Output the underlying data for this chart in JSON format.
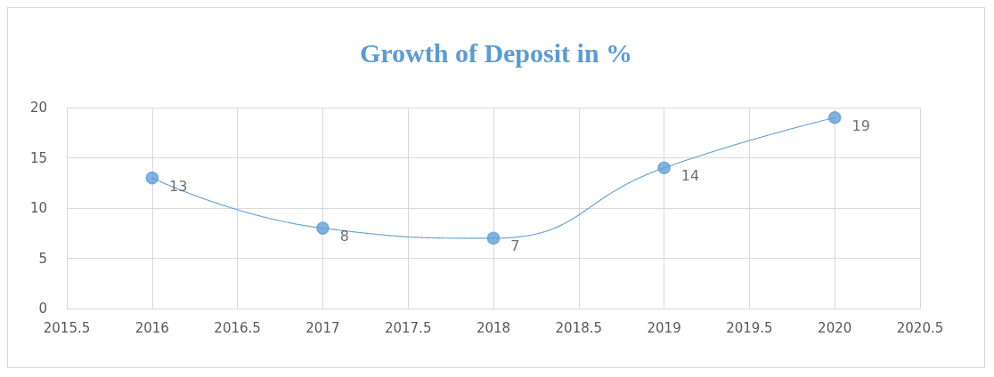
{
  "chart_data": {
    "type": "line",
    "title": "Growth of Deposit in %",
    "x": [
      2016,
      2017,
      2018,
      2019,
      2020
    ],
    "series": [
      {
        "color": "#5b9bd5",
        "values": [
          13,
          8,
          7,
          14,
          19
        ]
      }
    ],
    "xlim": [
      2015.5,
      2020.5
    ],
    "xticks": [
      2015.5,
      2016,
      2016.5,
      2017,
      2017.5,
      2018,
      2018.5,
      2019,
      2019.5,
      2020,
      2020.5
    ],
    "ylim": [
      0,
      20
    ],
    "yticks": [
      0,
      5,
      10,
      15,
      20
    ],
    "grid": true,
    "marker": "circle",
    "line_style": "dotted",
    "data_labels": true
  }
}
